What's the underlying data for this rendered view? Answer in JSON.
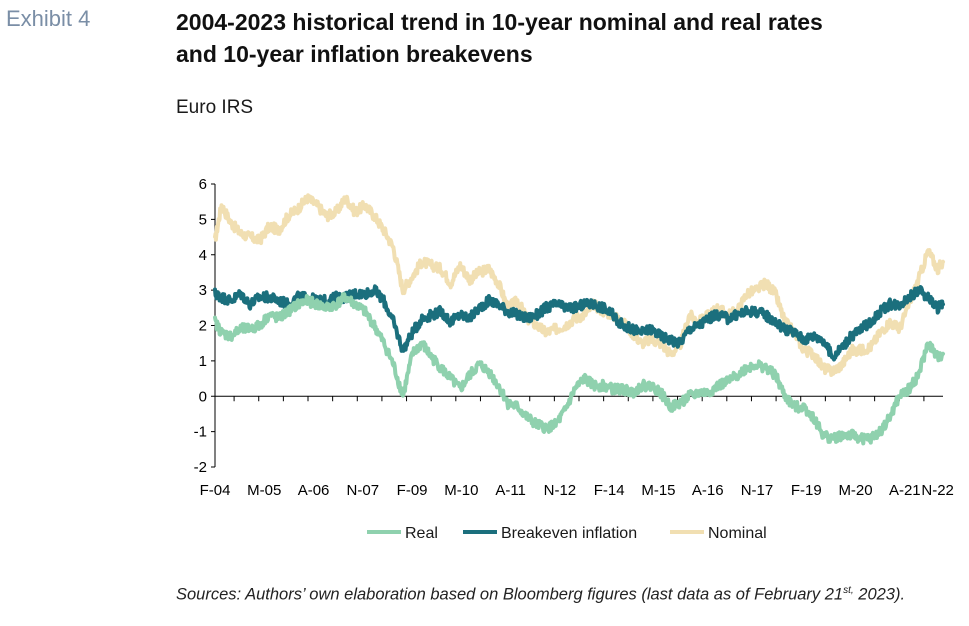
{
  "header": {
    "exhibit": "Exhibit 4",
    "title_line1": "2004-2023 historical trend in 10-year nominal and real rates",
    "title_line2": "and 10-year inflation breakevens",
    "subtitle": "Euro IRS"
  },
  "footer": {
    "sources_main": "Sources: Authors’ own elaboration based on Bloomberg figures (last data as of February 21",
    "sources_sup": "st,",
    "sources_end": "2023)."
  },
  "chart_data": {
    "type": "line",
    "title": "",
    "xlabel": "",
    "ylabel": "",
    "ylim": [
      -2,
      6
    ],
    "yticks": [
      -2,
      -1,
      0,
      1,
      2,
      3,
      4,
      5,
      6
    ],
    "x_range": [
      "2004-02",
      "2023-02"
    ],
    "x_tick_labels": [
      "F-04",
      "M-05",
      "A-06",
      "N-07",
      "F-09",
      "M-10",
      "A-11",
      "N-12",
      "F-14",
      "M-15",
      "A-16",
      "N-17",
      "F-19",
      "M-20",
      "A-21",
      "N-22"
    ],
    "x_tick_positions": [
      2004.08,
      2005.37,
      2006.66,
      2007.95,
      2009.24,
      2010.53,
      2011.82,
      2013.11,
      2014.4,
      2015.69,
      2016.98,
      2018.27,
      2019.56,
      2020.85,
      2022.14,
      2023.0
    ],
    "grid": false,
    "legend_position": "bottom",
    "colors": {
      "Real": "#8fd1ae",
      "Breakeven inflation": "#1b6f7d",
      "Nominal": "#f1dfb2"
    },
    "series": [
      {
        "name": "Nominal",
        "x": [
          2004.08,
          2004.25,
          2004.5,
          2004.75,
          2005.0,
          2005.25,
          2005.5,
          2005.75,
          2006.0,
          2006.25,
          2006.5,
          2006.75,
          2007.0,
          2007.25,
          2007.5,
          2007.75,
          2008.0,
          2008.25,
          2008.5,
          2008.75,
          2009.0,
          2009.25,
          2009.5,
          2009.75,
          2010.0,
          2010.25,
          2010.5,
          2010.75,
          2011.0,
          2011.25,
          2011.5,
          2011.75,
          2012.0,
          2012.25,
          2012.5,
          2012.75,
          2013.0,
          2013.25,
          2013.5,
          2013.75,
          2014.0,
          2014.25,
          2014.5,
          2014.75,
          2015.0,
          2015.25,
          2015.5,
          2015.75,
          2016.0,
          2016.25,
          2016.5,
          2016.75,
          2017.0,
          2017.25,
          2017.5,
          2017.75,
          2018.0,
          2018.25,
          2018.5,
          2018.75,
          2019.0,
          2019.25,
          2019.5,
          2019.75,
          2020.0,
          2020.25,
          2020.5,
          2020.75,
          2021.0,
          2021.25,
          2021.5,
          2021.75,
          2022.0,
          2022.25,
          2022.5,
          2022.75,
          2023.0,
          2023.14
        ],
        "values": [
          4.4,
          5.4,
          4.9,
          4.6,
          4.5,
          4.4,
          4.8,
          4.7,
          5.1,
          5.3,
          5.6,
          5.4,
          5.1,
          5.2,
          5.6,
          5.2,
          5.4,
          5.1,
          4.7,
          4.2,
          3.0,
          3.4,
          3.8,
          3.7,
          3.6,
          3.2,
          3.7,
          3.3,
          3.5,
          3.6,
          3.2,
          2.5,
          2.7,
          2.2,
          2.0,
          1.8,
          1.9,
          2.0,
          2.2,
          2.3,
          2.6,
          2.4,
          2.3,
          2.1,
          1.8,
          1.5,
          1.6,
          1.5,
          1.2,
          1.4,
          2.3,
          2.1,
          2.3,
          2.5,
          2.3,
          2.4,
          2.9,
          3.0,
          3.2,
          2.9,
          2.1,
          1.8,
          1.3,
          1.2,
          0.8,
          0.7,
          0.9,
          1.3,
          1.3,
          1.4,
          1.8,
          2.1,
          1.9,
          2.6,
          3.3,
          4.1,
          3.6,
          3.8
        ]
      },
      {
        "name": "Breakeven inflation",
        "x": [
          2004.08,
          2004.25,
          2004.5,
          2004.75,
          2005.0,
          2005.25,
          2005.5,
          2005.75,
          2006.0,
          2006.25,
          2006.5,
          2006.75,
          2007.0,
          2007.25,
          2007.5,
          2007.75,
          2008.0,
          2008.25,
          2008.5,
          2008.75,
          2009.0,
          2009.25,
          2009.5,
          2009.75,
          2010.0,
          2010.25,
          2010.5,
          2010.75,
          2011.0,
          2011.25,
          2011.5,
          2011.75,
          2012.0,
          2012.25,
          2012.5,
          2012.75,
          2013.0,
          2013.25,
          2013.5,
          2013.75,
          2014.0,
          2014.25,
          2014.5,
          2014.75,
          2015.0,
          2015.25,
          2015.5,
          2015.75,
          2016.0,
          2016.25,
          2016.5,
          2016.75,
          2017.0,
          2017.25,
          2017.5,
          2017.75,
          2018.0,
          2018.25,
          2018.5,
          2018.75,
          2019.0,
          2019.25,
          2019.5,
          2019.75,
          2020.0,
          2020.25,
          2020.5,
          2020.75,
          2021.0,
          2021.25,
          2021.5,
          2021.75,
          2022.0,
          2022.25,
          2022.5,
          2022.75,
          2023.0,
          2023.14
        ],
        "values": [
          2.9,
          2.8,
          2.7,
          2.9,
          2.6,
          2.8,
          2.8,
          2.7,
          2.6,
          2.8,
          2.8,
          2.7,
          2.7,
          2.8,
          2.8,
          2.9,
          2.9,
          3.0,
          2.7,
          2.1,
          1.3,
          1.8,
          2.2,
          2.3,
          2.4,
          2.1,
          2.3,
          2.2,
          2.5,
          2.7,
          2.6,
          2.4,
          2.3,
          2.2,
          2.3,
          2.5,
          2.6,
          2.5,
          2.5,
          2.6,
          2.6,
          2.5,
          2.3,
          2.0,
          1.9,
          1.8,
          1.9,
          1.7,
          1.6,
          1.5,
          1.9,
          2.0,
          2.2,
          2.3,
          2.2,
          2.3,
          2.4,
          2.4,
          2.3,
          2.1,
          1.9,
          1.8,
          1.6,
          1.7,
          1.6,
          1.1,
          1.4,
          1.7,
          1.9,
          2.1,
          2.4,
          2.6,
          2.6,
          2.8,
          3.0,
          2.8,
          2.5,
          2.6
        ]
      },
      {
        "name": "Real",
        "x": [
          2004.08,
          2004.25,
          2004.5,
          2004.75,
          2005.0,
          2005.25,
          2005.5,
          2005.75,
          2006.0,
          2006.25,
          2006.5,
          2006.75,
          2007.0,
          2007.25,
          2007.5,
          2007.75,
          2008.0,
          2008.25,
          2008.5,
          2008.75,
          2009.0,
          2009.25,
          2009.5,
          2009.75,
          2010.0,
          2010.25,
          2010.5,
          2010.75,
          2011.0,
          2011.25,
          2011.5,
          2011.75,
          2012.0,
          2012.25,
          2012.5,
          2012.75,
          2013.0,
          2013.25,
          2013.5,
          2013.75,
          2014.0,
          2014.25,
          2014.5,
          2014.75,
          2015.0,
          2015.25,
          2015.5,
          2015.75,
          2016.0,
          2016.25,
          2016.5,
          2016.75,
          2017.0,
          2017.25,
          2017.5,
          2017.75,
          2018.0,
          2018.25,
          2018.5,
          2018.75,
          2019.0,
          2019.25,
          2019.5,
          2019.75,
          2020.0,
          2020.25,
          2020.5,
          2020.75,
          2021.0,
          2021.25,
          2021.5,
          2021.75,
          2022.0,
          2022.25,
          2022.5,
          2022.75,
          2023.0,
          2023.14
        ],
        "values": [
          2.1,
          1.8,
          1.7,
          1.9,
          1.9,
          2.0,
          2.3,
          2.2,
          2.4,
          2.6,
          2.7,
          2.6,
          2.5,
          2.6,
          2.8,
          2.6,
          2.4,
          2.0,
          1.5,
          0.9,
          0.0,
          1.2,
          1.5,
          1.1,
          0.8,
          0.5,
          0.2,
          0.6,
          0.9,
          0.7,
          0.3,
          -0.2,
          -0.3,
          -0.6,
          -0.8,
          -0.9,
          -0.8,
          -0.4,
          0.2,
          0.5,
          0.3,
          0.3,
          0.2,
          0.2,
          0.1,
          0.3,
          0.3,
          0.1,
          -0.3,
          -0.2,
          0.0,
          0.1,
          0.1,
          0.3,
          0.4,
          0.6,
          0.8,
          0.9,
          0.8,
          0.6,
          0.0,
          -0.3,
          -0.3,
          -0.6,
          -1.1,
          -1.2,
          -1.1,
          -1.1,
          -1.2,
          -1.2,
          -1.0,
          -0.6,
          0.0,
          0.2,
          0.6,
          1.5,
          1.1,
          1.2
        ]
      }
    ],
    "legend_order": [
      "Real",
      "Breakeven inflation",
      "Nominal"
    ]
  }
}
